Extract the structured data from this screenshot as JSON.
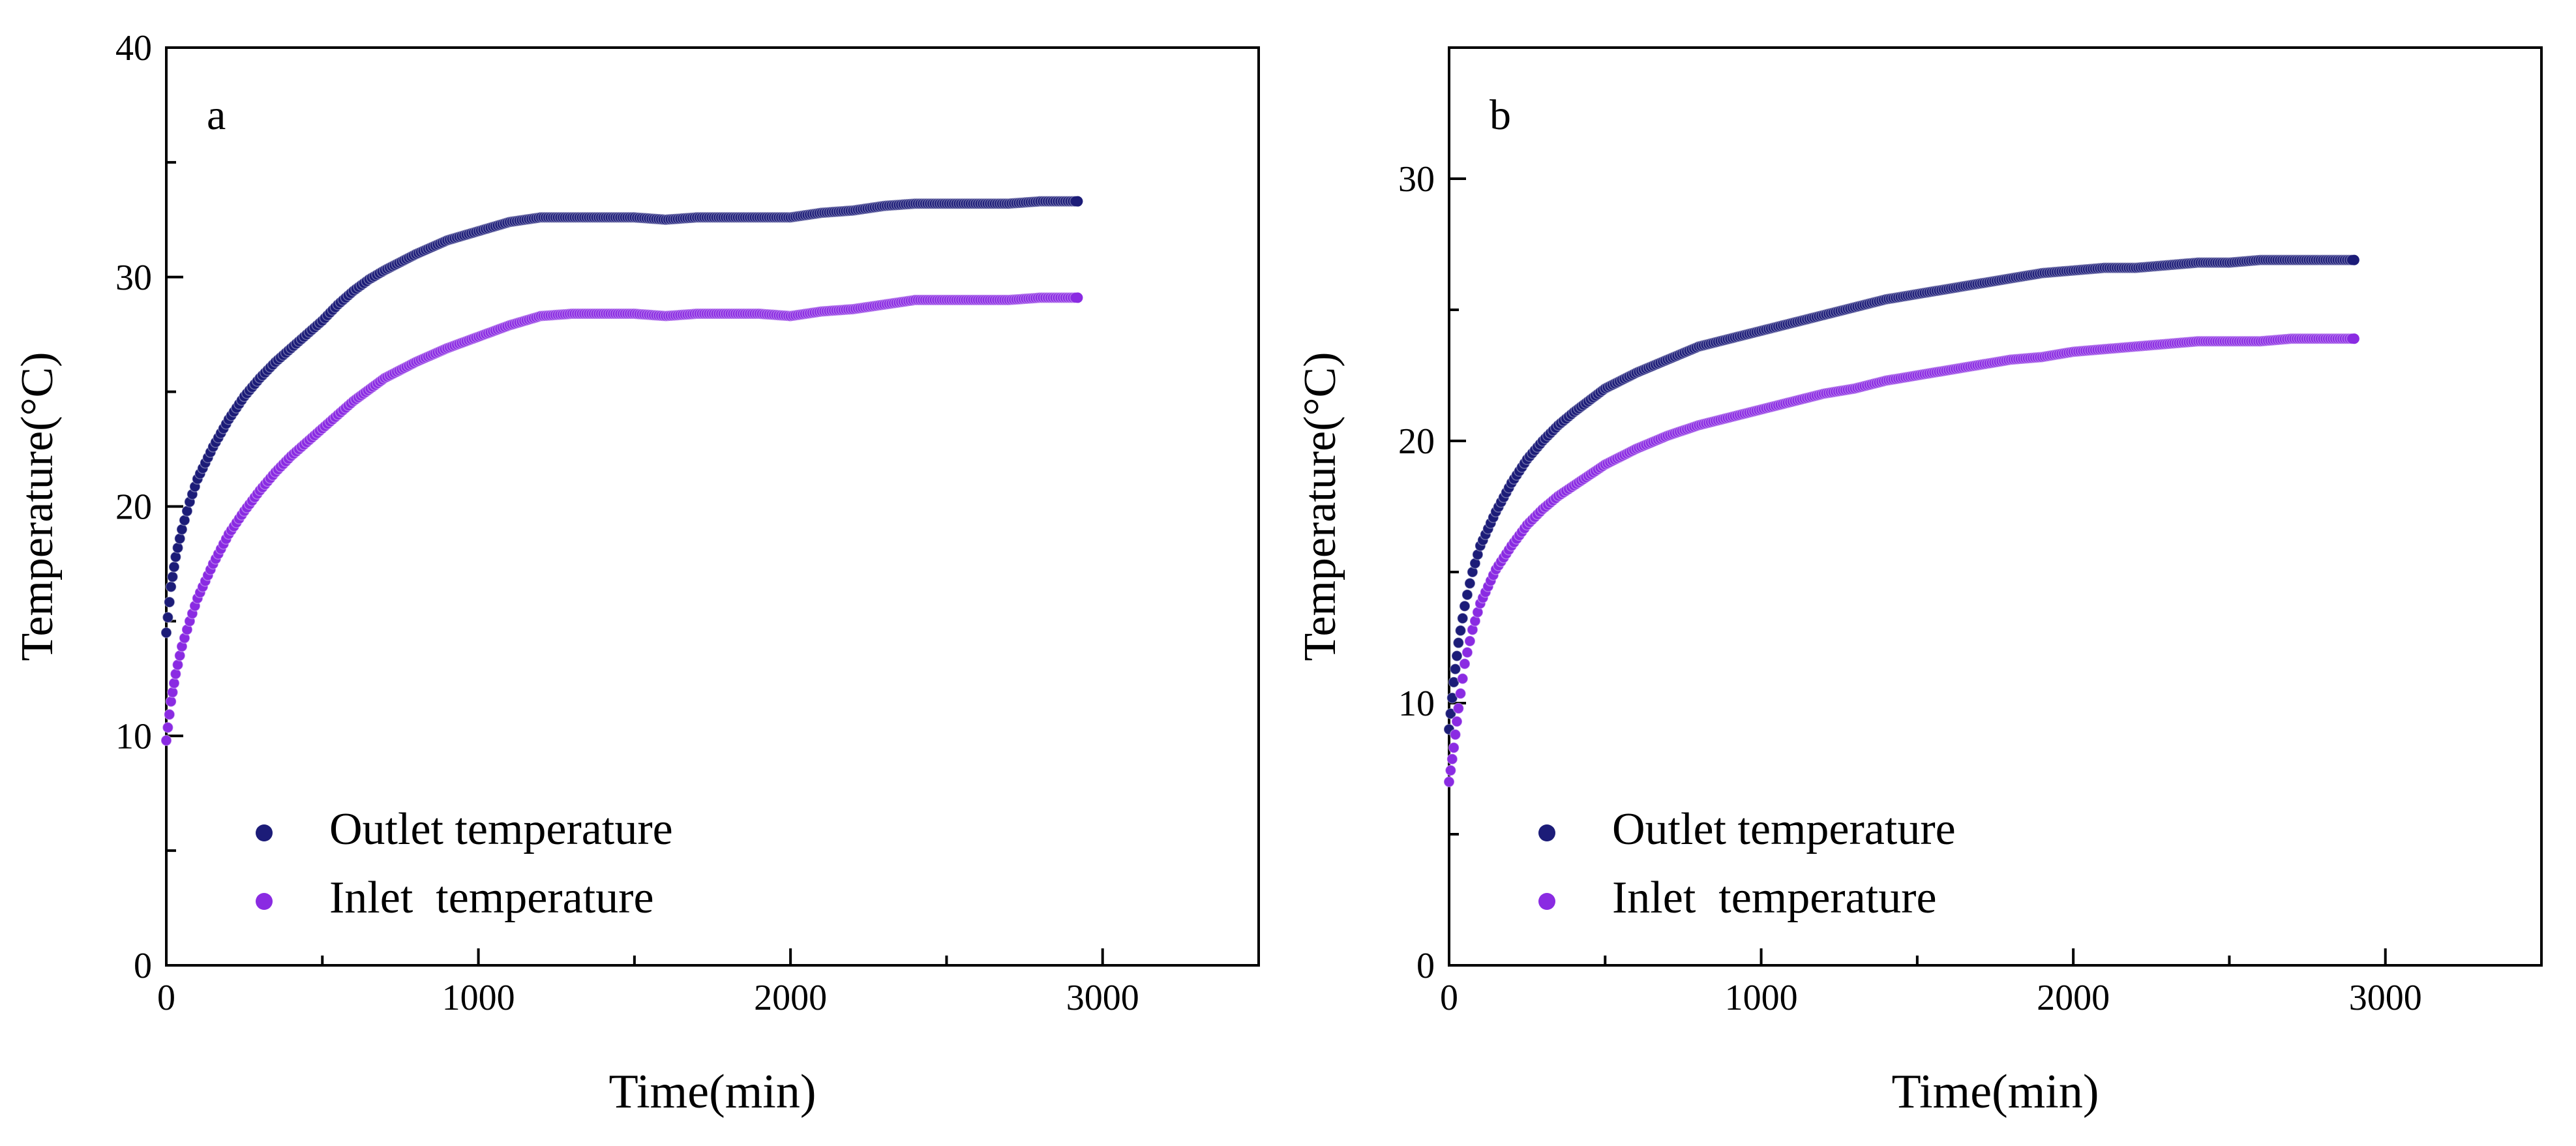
{
  "chart_data": [
    {
      "type": "scatter",
      "panel_label": "a",
      "xlabel": "Time(min)",
      "ylabel": "Temperature(°C)",
      "xlim": [
        0,
        3500
      ],
      "ylim": [
        0,
        40
      ],
      "xticks": [
        0,
        1000,
        2000,
        3000
      ],
      "yticks": [
        0,
        10,
        20,
        30,
        40
      ],
      "x_minor_step": 500,
      "y_minor_step": 5,
      "legend": {
        "position": "bottom-left"
      },
      "series": [
        {
          "name": "Outlet temperature",
          "color": "#1c1c78",
          "points": [
            [
              0,
              14.5
            ],
            [
              15,
              16.5
            ],
            [
              30,
              17.8
            ],
            [
              50,
              19.0
            ],
            [
              75,
              20.2
            ],
            [
              100,
              21.2
            ],
            [
              150,
              22.6
            ],
            [
              200,
              23.8
            ],
            [
              250,
              24.8
            ],
            [
              300,
              25.6
            ],
            [
              350,
              26.3
            ],
            [
              400,
              26.9
            ],
            [
              450,
              27.5
            ],
            [
              500,
              28.1
            ],
            [
              550,
              28.8
            ],
            [
              600,
              29.4
            ],
            [
              650,
              29.9
            ],
            [
              700,
              30.3
            ],
            [
              800,
              31.0
            ],
            [
              900,
              31.6
            ],
            [
              1000,
              32.0
            ],
            [
              1100,
              32.4
            ],
            [
              1200,
              32.6
            ],
            [
              1300,
              32.6
            ],
            [
              1400,
              32.6
            ],
            [
              1500,
              32.6
            ],
            [
              1600,
              32.5
            ],
            [
              1700,
              32.6
            ],
            [
              1800,
              32.6
            ],
            [
              1900,
              32.6
            ],
            [
              2000,
              32.6
            ],
            [
              2100,
              32.8
            ],
            [
              2200,
              32.9
            ],
            [
              2300,
              33.1
            ],
            [
              2400,
              33.2
            ],
            [
              2500,
              33.2
            ],
            [
              2600,
              33.2
            ],
            [
              2700,
              33.2
            ],
            [
              2800,
              33.3
            ],
            [
              2920,
              33.3
            ]
          ]
        },
        {
          "name": "Inlet  temperature",
          "color": "#8a2be2",
          "points": [
            [
              0,
              9.8
            ],
            [
              15,
              11.5
            ],
            [
              30,
              12.7
            ],
            [
              50,
              13.9
            ],
            [
              75,
              15.0
            ],
            [
              100,
              16.0
            ],
            [
              150,
              17.5
            ],
            [
              200,
              18.8
            ],
            [
              250,
              19.8
            ],
            [
              300,
              20.7
            ],
            [
              350,
              21.5
            ],
            [
              400,
              22.2
            ],
            [
              450,
              22.8
            ],
            [
              500,
              23.4
            ],
            [
              550,
              24.0
            ],
            [
              600,
              24.6
            ],
            [
              700,
              25.6
            ],
            [
              800,
              26.3
            ],
            [
              900,
              26.9
            ],
            [
              1000,
              27.4
            ],
            [
              1100,
              27.9
            ],
            [
              1200,
              28.3
            ],
            [
              1300,
              28.4
            ],
            [
              1400,
              28.4
            ],
            [
              1500,
              28.4
            ],
            [
              1600,
              28.3
            ],
            [
              1700,
              28.4
            ],
            [
              1800,
              28.4
            ],
            [
              1900,
              28.4
            ],
            [
              2000,
              28.3
            ],
            [
              2100,
              28.5
            ],
            [
              2200,
              28.6
            ],
            [
              2300,
              28.8
            ],
            [
              2400,
              29.0
            ],
            [
              2500,
              29.0
            ],
            [
              2600,
              29.0
            ],
            [
              2700,
              29.0
            ],
            [
              2800,
              29.1
            ],
            [
              2920,
              29.1
            ]
          ]
        }
      ]
    },
    {
      "type": "scatter",
      "panel_label": "b",
      "xlabel": "Time(min)",
      "ylabel": "Temperature(°C)",
      "xlim": [
        0,
        3500
      ],
      "ylim": [
        0,
        35
      ],
      "xticks": [
        0,
        1000,
        2000,
        3000
      ],
      "yticks": [
        0,
        10,
        20,
        30
      ],
      "x_minor_step": 500,
      "y_minor_step": 5,
      "legend": {
        "position": "bottom-left"
      },
      "series": [
        {
          "name": "Outlet temperature",
          "color": "#1c1c78",
          "points": [
            [
              0,
              9.0
            ],
            [
              15,
              10.8
            ],
            [
              30,
              12.3
            ],
            [
              50,
              13.7
            ],
            [
              75,
              15.0
            ],
            [
              100,
              16.0
            ],
            [
              150,
              17.3
            ],
            [
              200,
              18.4
            ],
            [
              250,
              19.3
            ],
            [
              300,
              20.0
            ],
            [
              350,
              20.6
            ],
            [
              400,
              21.1
            ],
            [
              500,
              22.0
            ],
            [
              600,
              22.6
            ],
            [
              700,
              23.1
            ],
            [
              800,
              23.6
            ],
            [
              900,
              23.9
            ],
            [
              1000,
              24.2
            ],
            [
              1100,
              24.5
            ],
            [
              1200,
              24.8
            ],
            [
              1300,
              25.1
            ],
            [
              1400,
              25.4
            ],
            [
              1500,
              25.6
            ],
            [
              1600,
              25.8
            ],
            [
              1700,
              26.0
            ],
            [
              1800,
              26.2
            ],
            [
              1900,
              26.4
            ],
            [
              2000,
              26.5
            ],
            [
              2100,
              26.6
            ],
            [
              2200,
              26.6
            ],
            [
              2300,
              26.7
            ],
            [
              2400,
              26.8
            ],
            [
              2500,
              26.8
            ],
            [
              2600,
              26.9
            ],
            [
              2700,
              26.9
            ],
            [
              2800,
              26.9
            ],
            [
              2900,
              26.9
            ]
          ]
        },
        {
          "name": "Inlet  temperature",
          "color": "#8a2be2",
          "points": [
            [
              0,
              7.0
            ],
            [
              15,
              8.3
            ],
            [
              30,
              9.8
            ],
            [
              50,
              11.5
            ],
            [
              75,
              12.8
            ],
            [
              100,
              13.8
            ],
            [
              150,
              15.1
            ],
            [
              200,
              16.0
            ],
            [
              250,
              16.8
            ],
            [
              300,
              17.4
            ],
            [
              350,
              17.9
            ],
            [
              400,
              18.3
            ],
            [
              500,
              19.1
            ],
            [
              600,
              19.7
            ],
            [
              700,
              20.2
            ],
            [
              800,
              20.6
            ],
            [
              900,
              20.9
            ],
            [
              1000,
              21.2
            ],
            [
              1100,
              21.5
            ],
            [
              1200,
              21.8
            ],
            [
              1300,
              22.0
            ],
            [
              1400,
              22.3
            ],
            [
              1500,
              22.5
            ],
            [
              1600,
              22.7
            ],
            [
              1700,
              22.9
            ],
            [
              1800,
              23.1
            ],
            [
              1900,
              23.2
            ],
            [
              2000,
              23.4
            ],
            [
              2100,
              23.5
            ],
            [
              2200,
              23.6
            ],
            [
              2300,
              23.7
            ],
            [
              2400,
              23.8
            ],
            [
              2500,
              23.8
            ],
            [
              2600,
              23.8
            ],
            [
              2700,
              23.9
            ],
            [
              2800,
              23.9
            ],
            [
              2900,
              23.9
            ]
          ]
        }
      ]
    }
  ]
}
